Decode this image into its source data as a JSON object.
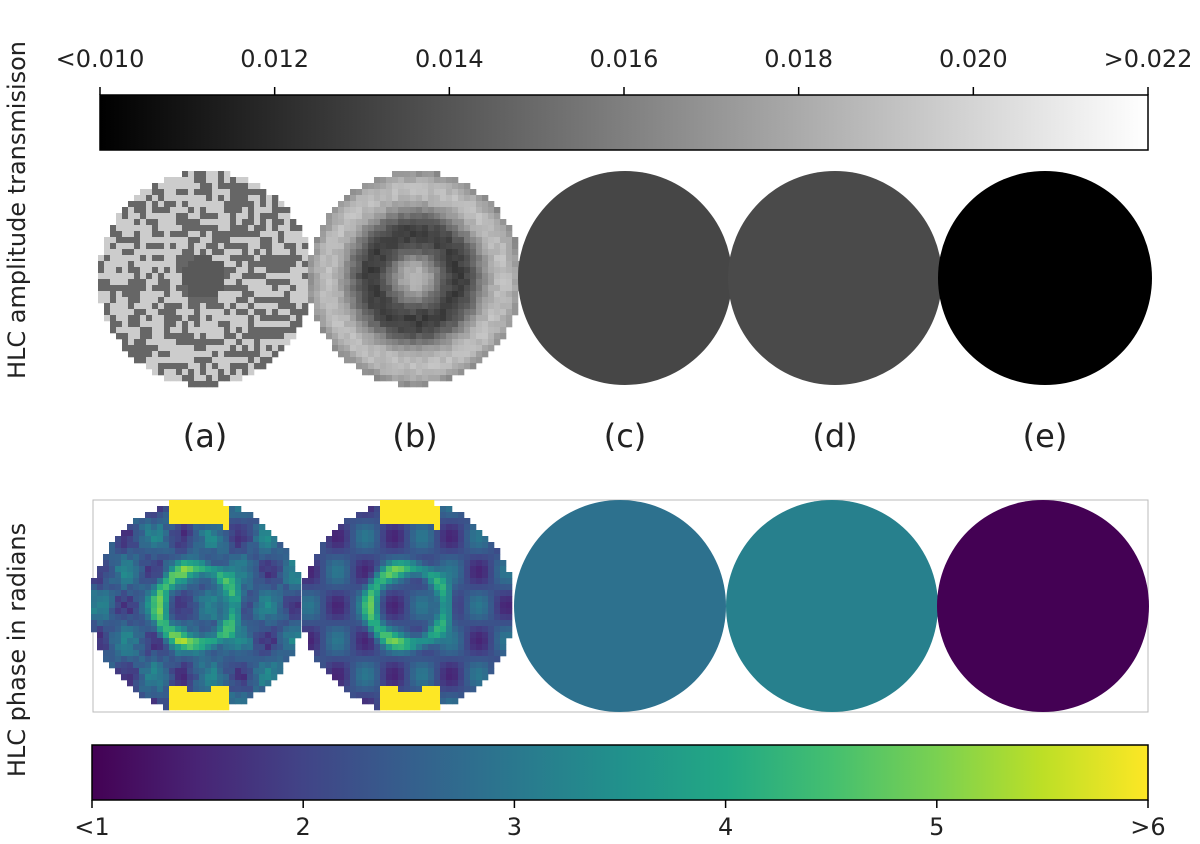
{
  "chart_data": [
    {
      "type": "colorbar",
      "cmap": "gray",
      "ylabel": "HLC amplitude transmisison",
      "categories": [
        "(a)",
        "(b)",
        "(c)",
        "(d)",
        "(e)"
      ],
      "values": [
        null,
        null,
        0.0133,
        0.0135,
        0.01
      ],
      "xlim": [
        0.01,
        0.022
      ],
      "xticks": [
        {
          "value": 0.01,
          "label": "<0.010"
        },
        0.012,
        0.014,
        0.016,
        0.018,
        {
          "value": 0.02,
          "label": "0.020"
        },
        {
          "value": 0.022,
          "label": ">0.022"
        }
      ]
    },
    {
      "type": "colorbar",
      "cmap": "viridis",
      "ylabel": "HLC phase in radians",
      "values": [
        null,
        null,
        2.85,
        3.15,
        1
      ],
      "xlim": [
        1,
        6
      ],
      "xticks": [
        {
          "value": 1,
          "label": "<1"
        },
        2,
        3,
        4,
        5,
        {
          "value": 6,
          "label": ">6"
        }
      ]
    }
  ]
}
